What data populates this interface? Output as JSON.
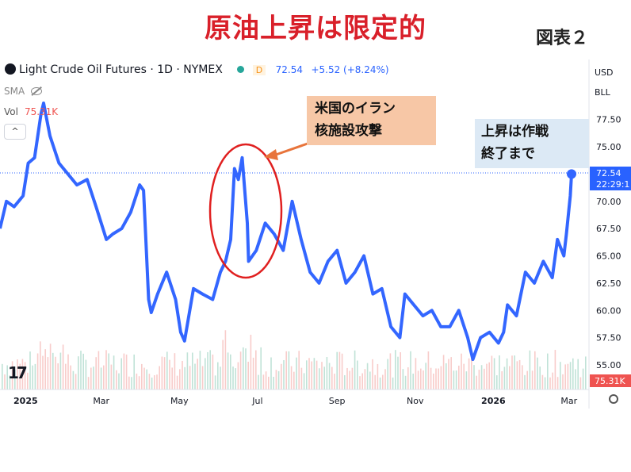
{
  "title": "原油上昇は限定的",
  "figure_label": "図表２",
  "header": {
    "symbol": "Light Crude Oil Futures · 1D · NYMEX",
    "interval_badge": "D",
    "price": "72.54",
    "change": "+5.52 (+8.24%)"
  },
  "indicators": {
    "sma": "SMA",
    "vol_label": "Vol",
    "vol_value": "75.31K",
    "collapse": "^"
  },
  "axis_header": {
    "currency": "USD",
    "unit": "BLL"
  },
  "last_price_label": {
    "price": "72.54",
    "countdown": "22:29:1"
  },
  "volume_label": "75.31K",
  "annotations": {
    "iran_line1": "米国のイラン",
    "iran_line2": "核施設攻撃",
    "end_line1": "上昇は作戦",
    "end_line2": "終了まで"
  },
  "tv_logo": "17",
  "colors": {
    "line": "#3366ff",
    "title": "#d9202a",
    "circle": "#e02020",
    "arrow": "#e8743b"
  },
  "chart_data": {
    "type": "line",
    "title": "",
    "xlabel": "",
    "ylabel": "",
    "ylim": [
      54,
      79
    ],
    "y_ticks": [
      "77.50",
      "75.00",
      "72.50",
      "70.00",
      "67.50",
      "65.00",
      "62.50",
      "60.00",
      "57.50",
      "55.00"
    ],
    "x_tick_labels": [
      "2025",
      "Mar",
      "May",
      "Jul",
      "Sep",
      "Nov",
      "2026",
      "Mar"
    ],
    "x_tick_dates": [
      "2025-01-01",
      "2025-03-01",
      "2025-05-01",
      "2025-07-01",
      "2025-09-01",
      "2025-11-01",
      "2026-01-01",
      "2026-03-01"
    ],
    "x_range": [
      "2024-12-12",
      "2026-03-16"
    ],
    "series": [
      {
        "values": [
          [
            "2024-12-12",
            67.5
          ],
          [
            "2024-12-17",
            70.0
          ],
          [
            "2024-12-23",
            69.5
          ],
          [
            "2024-12-30",
            70.5
          ],
          [
            "2025-01-03",
            73.5
          ],
          [
            "2025-01-08",
            74.0
          ],
          [
            "2025-01-13",
            78.0
          ],
          [
            "2025-01-15",
            79.0
          ],
          [
            "2025-01-20",
            76.0
          ],
          [
            "2025-01-27",
            73.5
          ],
          [
            "2025-02-03",
            72.5
          ],
          [
            "2025-02-10",
            71.5
          ],
          [
            "2025-02-18",
            72.0
          ],
          [
            "2025-02-25",
            69.5
          ],
          [
            "2025-03-05",
            66.5
          ],
          [
            "2025-03-10",
            67.0
          ],
          [
            "2025-03-17",
            67.5
          ],
          [
            "2025-03-24",
            69.0
          ],
          [
            "2025-03-31",
            71.5
          ],
          [
            "2025-04-03",
            71.0
          ],
          [
            "2025-04-07",
            61.0
          ],
          [
            "2025-04-09",
            59.8
          ],
          [
            "2025-04-14",
            61.5
          ],
          [
            "2025-04-21",
            63.5
          ],
          [
            "2025-04-28",
            61.0
          ],
          [
            "2025-05-02",
            58.0
          ],
          [
            "2025-05-05",
            57.2
          ],
          [
            "2025-05-12",
            62.0
          ],
          [
            "2025-05-19",
            61.5
          ],
          [
            "2025-05-27",
            61.0
          ],
          [
            "2025-06-02",
            63.5
          ],
          [
            "2025-06-06",
            64.5
          ],
          [
            "2025-06-10",
            66.5
          ],
          [
            "2025-06-13",
            73.0
          ],
          [
            "2025-06-16",
            72.0
          ],
          [
            "2025-06-19",
            74.0
          ],
          [
            "2025-06-23",
            68.0
          ],
          [
            "2025-06-24",
            64.5
          ],
          [
            "2025-06-30",
            65.5
          ],
          [
            "2025-07-07",
            68.0
          ],
          [
            "2025-07-14",
            67.0
          ],
          [
            "2025-07-21",
            65.5
          ],
          [
            "2025-07-28",
            70.0
          ],
          [
            "2025-08-04",
            66.5
          ],
          [
            "2025-08-11",
            63.5
          ],
          [
            "2025-08-18",
            62.5
          ],
          [
            "2025-08-25",
            64.5
          ],
          [
            "2025-09-01",
            65.5
          ],
          [
            "2025-09-08",
            62.5
          ],
          [
            "2025-09-15",
            63.5
          ],
          [
            "2025-09-22",
            65.0
          ],
          [
            "2025-09-29",
            61.5
          ],
          [
            "2025-10-06",
            62.0
          ],
          [
            "2025-10-13",
            58.5
          ],
          [
            "2025-10-20",
            57.5
          ],
          [
            "2025-10-24",
            61.5
          ],
          [
            "2025-10-31",
            60.5
          ],
          [
            "2025-11-07",
            59.5
          ],
          [
            "2025-11-14",
            60.0
          ],
          [
            "2025-11-21",
            58.5
          ],
          [
            "2025-11-28",
            58.5
          ],
          [
            "2025-12-05",
            60.0
          ],
          [
            "2025-12-12",
            57.5
          ],
          [
            "2025-12-16",
            55.5
          ],
          [
            "2025-12-22",
            57.5
          ],
          [
            "2025-12-29",
            58.0
          ],
          [
            "2026-01-05",
            57.0
          ],
          [
            "2026-01-09",
            58.0
          ],
          [
            "2026-01-12",
            60.5
          ],
          [
            "2026-01-19",
            59.5
          ],
          [
            "2026-01-26",
            63.5
          ],
          [
            "2026-02-02",
            62.5
          ],
          [
            "2026-02-09",
            64.5
          ],
          [
            "2026-02-16",
            63.0
          ],
          [
            "2026-02-20",
            66.5
          ],
          [
            "2026-02-25",
            65.0
          ],
          [
            "2026-02-27",
            67.0
          ],
          [
            "2026-03-02",
            70.5
          ],
          [
            "2026-03-03",
            72.5
          ]
        ]
      }
    ]
  }
}
